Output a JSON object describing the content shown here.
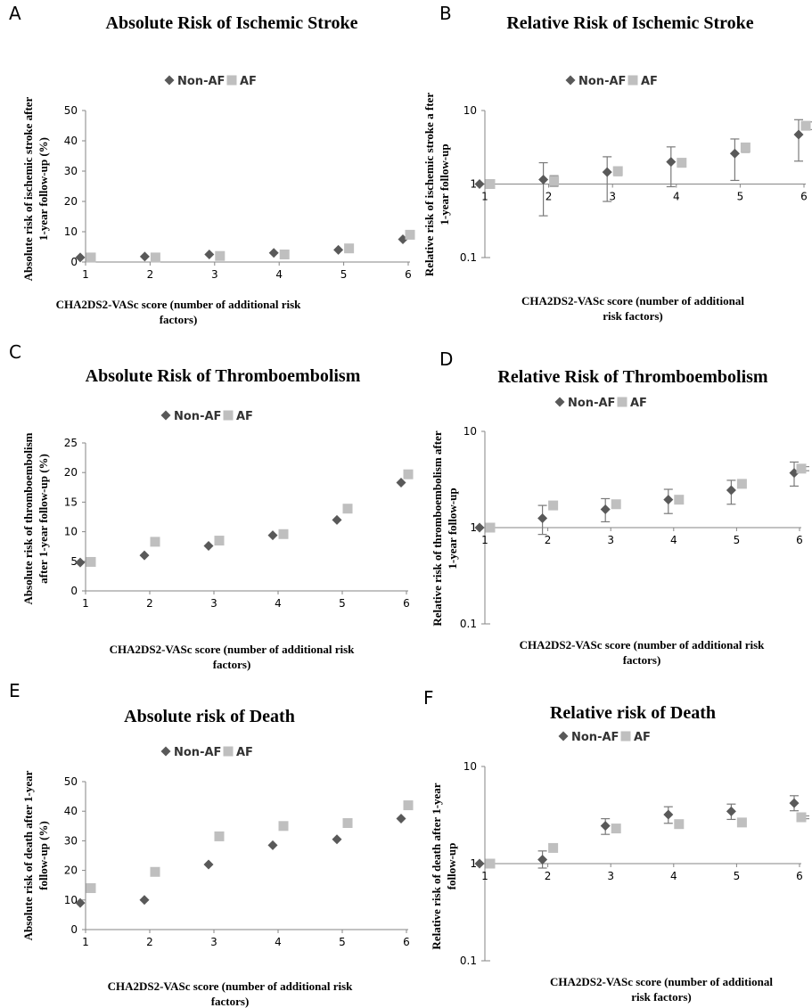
{
  "colors": {
    "non_af": "#595959",
    "af": "#bfbfbf",
    "axis": "#868686",
    "text": "#000000"
  },
  "chart_data": [
    {
      "panel": "A",
      "type": "scatter",
      "title": "Absolute Risk of Ischemic Stroke",
      "xlabel": "CHA2DS2-VASc score (number of additional risk factors)",
      "ylabel": "Absolute risk of ischemic stroke after 1-year follow-up (%)",
      "x_ticks": [
        1,
        2,
        3,
        4,
        5,
        6
      ],
      "ylim": [
        0,
        50
      ],
      "yticks": [
        0,
        10,
        20,
        30,
        40,
        50
      ],
      "log_scale": false,
      "legend": "top",
      "series": [
        {
          "name": "Non-AF",
          "marker": "diamond",
          "x": [
            1,
            2,
            3,
            4,
            5,
            6
          ],
          "y": [
            1.5,
            1.8,
            2.5,
            3.0,
            4.0,
            7.5
          ]
        },
        {
          "name": "AF",
          "marker": "square",
          "x": [
            1,
            2,
            3,
            4,
            5,
            6
          ],
          "y": [
            1.5,
            1.5,
            2.0,
            2.5,
            4.5,
            9.0
          ]
        }
      ]
    },
    {
      "panel": "B",
      "type": "scatter",
      "title": "Relative Risk of Ischemic Stroke",
      "xlabel": "CHA2DS2-VASc score (number of additional risk factors)",
      "ylabel": "Relative risk of ischemic stroke a fter 1-year follow-up",
      "x_ticks": [
        1,
        2,
        3,
        4,
        5,
        6
      ],
      "ylim": [
        0.1,
        10
      ],
      "yticks": [
        0.1,
        1,
        10
      ],
      "log_scale": true,
      "legend": "top",
      "series": [
        {
          "name": "Non-AF",
          "marker": "diamond",
          "x": [
            1,
            2,
            3,
            4,
            5,
            6
          ],
          "y": [
            1.0,
            1.15,
            1.45,
            2.0,
            2.6,
            4.7
          ],
          "err_low": [
            1.0,
            0.37,
            0.58,
            0.92,
            1.12,
            2.05
          ],
          "err_high": [
            1.0,
            1.95,
            2.35,
            3.2,
            4.1,
            7.5
          ]
        },
        {
          "name": "AF",
          "marker": "square",
          "x": [
            1,
            2,
            3,
            4,
            5,
            6
          ],
          "y": [
            1.0,
            1.1,
            1.5,
            1.95,
            3.15,
            6.2
          ],
          "err_low": [
            1.0,
            0.93,
            1.3,
            1.7,
            2.7,
            5.5
          ],
          "err_high": [
            1.0,
            1.3,
            1.7,
            2.2,
            3.5,
            7.0
          ]
        }
      ]
    },
    {
      "panel": "C",
      "type": "scatter",
      "title": "Absolute Risk of Thromboembolism",
      "xlabel": "CHA2DS2-VASc score (number of additional risk factors)",
      "ylabel": "Absolute risk of thromboembolism after 1-year follow-up (%)",
      "x_ticks": [
        1,
        2,
        3,
        4,
        5,
        6
      ],
      "ylim": [
        0,
        25
      ],
      "yticks": [
        0,
        5,
        10,
        15,
        20,
        25
      ],
      "log_scale": false,
      "legend": "top",
      "series": [
        {
          "name": "Non-AF",
          "marker": "diamond",
          "x": [
            1,
            2,
            3,
            4,
            5,
            6
          ],
          "y": [
            4.8,
            6.0,
            7.6,
            9.4,
            12.0,
            18.3
          ]
        },
        {
          "name": "AF",
          "marker": "square",
          "x": [
            1,
            2,
            3,
            4,
            5,
            6
          ],
          "y": [
            4.9,
            8.3,
            8.5,
            9.6,
            13.9,
            19.7
          ]
        }
      ]
    },
    {
      "panel": "D",
      "type": "scatter",
      "title": "Relative Risk of Thromboembolism",
      "xlabel": "CHA2DS2-VASc score (number of additional risk factors)",
      "ylabel": "Relative risk of thromboembolism after 1-year follow-up",
      "x_ticks": [
        1,
        2,
        3,
        4,
        5,
        6
      ],
      "ylim": [
        0.1,
        10
      ],
      "yticks": [
        0.1,
        1,
        10
      ],
      "log_scale": true,
      "legend": "top",
      "series": [
        {
          "name": "Non-AF",
          "marker": "diamond",
          "x": [
            1,
            2,
            3,
            4,
            5,
            6
          ],
          "y": [
            1.0,
            1.25,
            1.55,
            1.95,
            2.45,
            3.7
          ],
          "err_low": [
            1.0,
            0.85,
            1.15,
            1.4,
            1.75,
            2.7
          ],
          "err_high": [
            1.0,
            1.7,
            2.0,
            2.5,
            3.1,
            4.8
          ]
        },
        {
          "name": "AF",
          "marker": "square",
          "x": [
            1,
            2,
            3,
            4,
            5,
            6
          ],
          "y": [
            1.0,
            1.7,
            1.75,
            1.95,
            2.85,
            4.1
          ],
          "err_low": [
            1.0,
            1.6,
            1.65,
            1.85,
            2.7,
            3.9
          ],
          "err_high": [
            1.0,
            1.8,
            1.85,
            2.05,
            3.0,
            4.3
          ]
        }
      ]
    },
    {
      "panel": "E",
      "type": "scatter",
      "title": "Absolute risk of Death",
      "xlabel": "CHA2DS2-VASc score (number of additional risk factors)",
      "ylabel": "Absolute risk of death after 1-year follow-up (%)",
      "x_ticks": [
        1,
        2,
        3,
        4,
        5,
        6
      ],
      "ylim": [
        0,
        50
      ],
      "yticks": [
        0,
        10,
        20,
        30,
        40,
        50
      ],
      "log_scale": false,
      "legend": "top",
      "series": [
        {
          "name": "Non-AF",
          "marker": "diamond",
          "x": [
            1,
            2,
            3,
            4,
            5,
            6
          ],
          "y": [
            9.0,
            10.0,
            22.0,
            28.5,
            30.5,
            37.5
          ]
        },
        {
          "name": "AF",
          "marker": "square",
          "x": [
            1,
            2,
            3,
            4,
            5,
            6
          ],
          "y": [
            14.0,
            19.5,
            31.5,
            35.0,
            36.0,
            42.0
          ]
        }
      ]
    },
    {
      "panel": "F",
      "type": "scatter",
      "title": "Relative risk of Death",
      "xlabel": "CHA2DS2-VASc score (number of additional risk factors)",
      "ylabel": "Relative risk of death after 1-year follow-up",
      "x_ticks": [
        1,
        2,
        3,
        4,
        5,
        6
      ],
      "ylim": [
        0.1,
        10
      ],
      "yticks": [
        0.1,
        1,
        10
      ],
      "log_scale": true,
      "legend": "top",
      "series": [
        {
          "name": "Non-AF",
          "marker": "diamond",
          "x": [
            1,
            2,
            3,
            4,
            5,
            6
          ],
          "y": [
            1.0,
            1.1,
            2.45,
            3.2,
            3.45,
            4.2
          ],
          "err_low": [
            1.0,
            0.9,
            2.0,
            2.6,
            2.85,
            3.5
          ],
          "err_high": [
            1.0,
            1.35,
            2.9,
            3.85,
            4.1,
            5.0
          ]
        },
        {
          "name": "AF",
          "marker": "square",
          "x": [
            1,
            2,
            3,
            4,
            5,
            6
          ],
          "y": [
            1.0,
            1.45,
            2.3,
            2.55,
            2.65,
            3.0
          ],
          "err_low": [
            1.0,
            1.4,
            2.25,
            2.5,
            2.6,
            2.9
          ],
          "err_high": [
            1.0,
            1.5,
            2.35,
            2.6,
            2.7,
            3.1
          ]
        }
      ]
    }
  ]
}
